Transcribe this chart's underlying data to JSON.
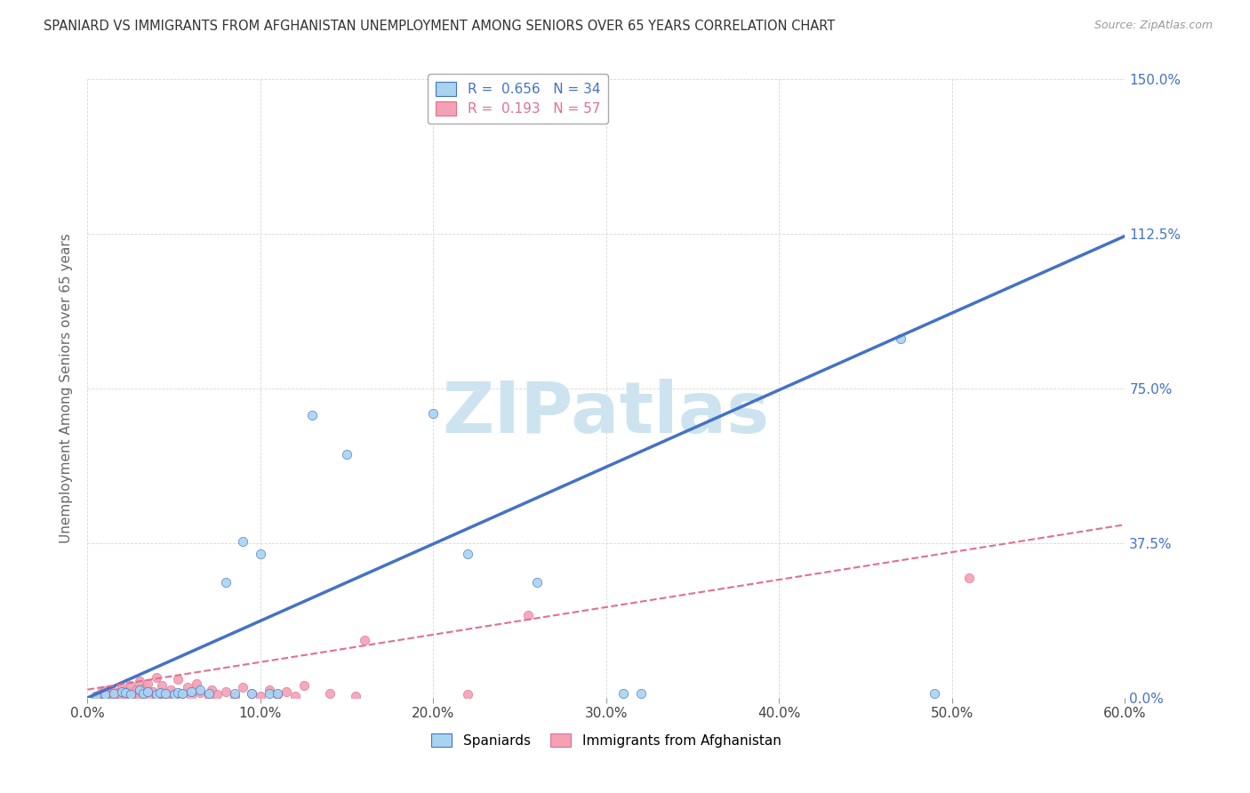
{
  "title": "SPANIARD VS IMMIGRANTS FROM AFGHANISTAN UNEMPLOYMENT AMONG SENIORS OVER 65 YEARS CORRELATION CHART",
  "source": "Source: ZipAtlas.com",
  "ylabel": "Unemployment Among Seniors over 65 years",
  "xlim": [
    0.0,
    0.6
  ],
  "ylim": [
    0.0,
    1.5
  ],
  "xtick_labels": [
    "0.0%",
    "10.0%",
    "20.0%",
    "30.0%",
    "40.0%",
    "50.0%",
    "60.0%"
  ],
  "xtick_vals": [
    0.0,
    0.1,
    0.2,
    0.3,
    0.4,
    0.5,
    0.6
  ],
  "ytick_labels": [
    "0.0%",
    "37.5%",
    "75.0%",
    "112.5%",
    "150.0%"
  ],
  "ytick_vals": [
    0.0,
    0.375,
    0.75,
    1.125,
    1.5
  ],
  "R_spaniard": 0.656,
  "N_spaniard": 34,
  "R_afghan": 0.193,
  "N_afghan": 57,
  "color_spaniard": "#a8d4f0",
  "color_afghan": "#f4a0b5",
  "color_line_spaniard": "#4472C4",
  "color_line_afghan": "#E07090",
  "watermark": "ZIPatlas",
  "watermark_color": "#cde4f0",
  "background_color": "#ffffff",
  "spaniard_x": [
    0.005,
    0.01,
    0.015,
    0.02,
    0.022,
    0.025,
    0.03,
    0.032,
    0.035,
    0.04,
    0.042,
    0.045,
    0.05,
    0.052,
    0.055,
    0.06,
    0.065,
    0.07,
    0.08,
    0.085,
    0.09,
    0.095,
    0.1,
    0.105,
    0.11,
    0.13,
    0.15,
    0.2,
    0.22,
    0.26,
    0.31,
    0.32,
    0.47,
    0.49
  ],
  "spaniard_y": [
    0.005,
    0.008,
    0.01,
    0.015,
    0.012,
    0.008,
    0.02,
    0.01,
    0.015,
    0.008,
    0.012,
    0.01,
    0.008,
    0.012,
    0.01,
    0.015,
    0.02,
    0.01,
    0.28,
    0.01,
    0.38,
    0.01,
    0.35,
    0.01,
    0.01,
    0.685,
    0.59,
    0.69,
    0.35,
    0.28,
    0.01,
    0.01,
    0.87,
    0.01
  ],
  "afghan_x": [
    0.005,
    0.007,
    0.008,
    0.01,
    0.01,
    0.012,
    0.013,
    0.015,
    0.015,
    0.018,
    0.02,
    0.02,
    0.022,
    0.023,
    0.025,
    0.025,
    0.027,
    0.028,
    0.03,
    0.03,
    0.032,
    0.033,
    0.035,
    0.035,
    0.038,
    0.04,
    0.04,
    0.042,
    0.043,
    0.045,
    0.048,
    0.05,
    0.052,
    0.055,
    0.058,
    0.06,
    0.063,
    0.065,
    0.07,
    0.072,
    0.075,
    0.08,
    0.085,
    0.09,
    0.095,
    0.1,
    0.105,
    0.11,
    0.115,
    0.12,
    0.125,
    0.14,
    0.155,
    0.16,
    0.22,
    0.255,
    0.51
  ],
  "afghan_y": [
    0.005,
    0.008,
    0.012,
    0.005,
    0.018,
    0.008,
    0.02,
    0.005,
    0.015,
    0.01,
    0.005,
    0.025,
    0.008,
    0.015,
    0.005,
    0.03,
    0.008,
    0.02,
    0.005,
    0.04,
    0.01,
    0.025,
    0.005,
    0.035,
    0.015,
    0.005,
    0.05,
    0.01,
    0.03,
    0.005,
    0.02,
    0.005,
    0.045,
    0.01,
    0.025,
    0.005,
    0.035,
    0.012,
    0.005,
    0.02,
    0.008,
    0.015,
    0.005,
    0.025,
    0.01,
    0.005,
    0.02,
    0.008,
    0.015,
    0.005,
    0.03,
    0.01,
    0.005,
    0.14,
    0.008,
    0.2,
    0.29
  ],
  "line_spaniard_x0": 0.0,
  "line_spaniard_y0": 0.0,
  "line_spaniard_x1": 0.6,
  "line_spaniard_y1": 1.12,
  "line_afghan_x0": 0.0,
  "line_afghan_y0": 0.02,
  "line_afghan_x1": 0.6,
  "line_afghan_y1": 0.42
}
